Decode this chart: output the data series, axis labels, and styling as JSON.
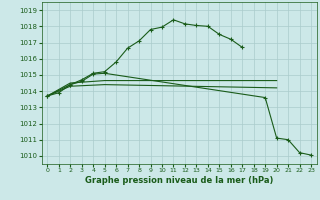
{
  "xlabel": "Graphe pression niveau de la mer (hPa)",
  "background_color": "#cce8e8",
  "grid_color": "#aacccc",
  "line_color": "#1a5c1a",
  "xlim": [
    -0.5,
    23.5
  ],
  "ylim": [
    1009.5,
    1019.5
  ],
  "yticks": [
    1010,
    1011,
    1012,
    1013,
    1014,
    1015,
    1016,
    1017,
    1018,
    1019
  ],
  "xticks": [
    0,
    1,
    2,
    3,
    4,
    5,
    6,
    7,
    8,
    9,
    10,
    11,
    12,
    13,
    14,
    15,
    16,
    17,
    18,
    19,
    20,
    21,
    22,
    23
  ],
  "line1_x": [
    0,
    1,
    2,
    3,
    4,
    5,
    6,
    7,
    8,
    9,
    10,
    11,
    12,
    13,
    14,
    15,
    16,
    17
  ],
  "line1_y": [
    1013.7,
    1013.9,
    1014.4,
    1014.7,
    1015.1,
    1015.2,
    1015.8,
    1016.65,
    1017.1,
    1017.8,
    1017.95,
    1018.4,
    1018.15,
    1018.05,
    1018.0,
    1017.5,
    1017.2,
    1016.7
  ],
  "line2_x": [
    0,
    2,
    5,
    20
  ],
  "line2_y": [
    1013.7,
    1014.5,
    1014.65,
    1014.65
  ],
  "line3_x": [
    0,
    2,
    5,
    20
  ],
  "line3_y": [
    1013.7,
    1014.3,
    1014.4,
    1014.2
  ],
  "line4_x": [
    0,
    2,
    3,
    4,
    5,
    19,
    20,
    21,
    22,
    23
  ],
  "line4_y": [
    1013.7,
    1014.4,
    1014.6,
    1015.05,
    1015.1,
    1013.6,
    1011.1,
    1011.0,
    1010.2,
    1010.05
  ]
}
